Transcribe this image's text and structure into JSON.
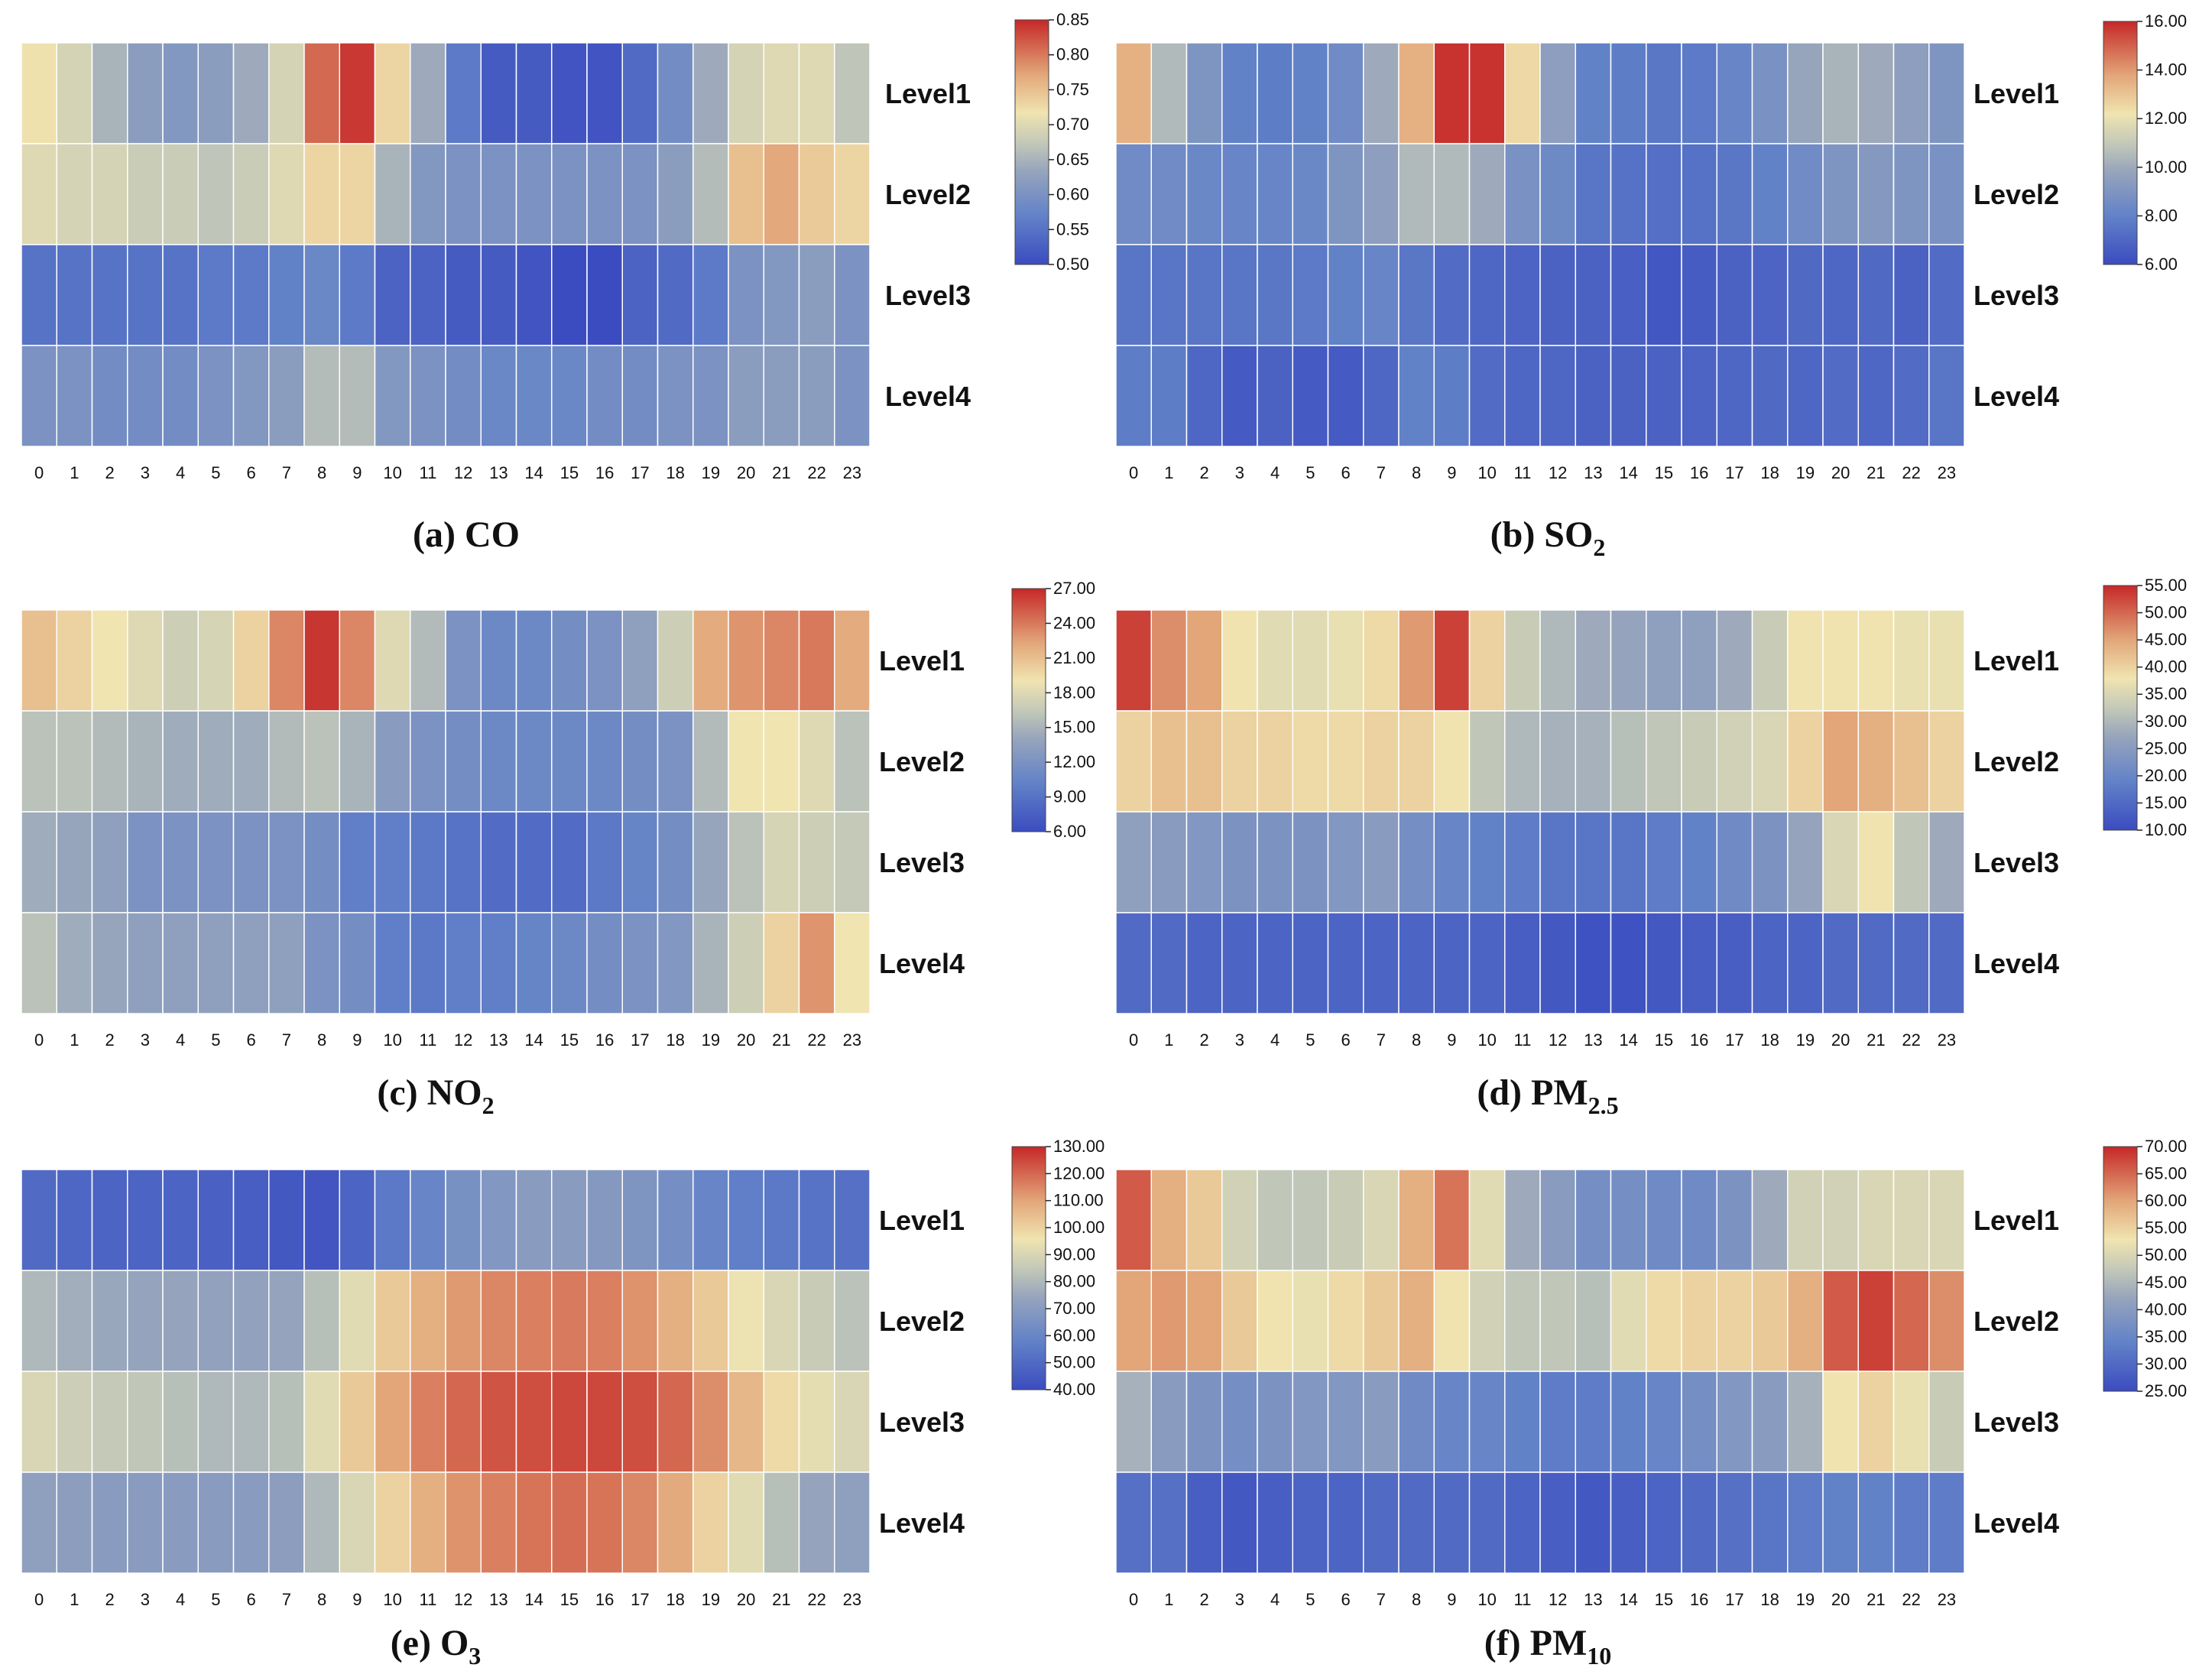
{
  "chart_data": [
    {
      "type": "heatmap",
      "title": "(a) CO",
      "title_main": "(a) CO",
      "title_sub": "",
      "x": [
        "0",
        "1",
        "2",
        "3",
        "4",
        "5",
        "6",
        "7",
        "8",
        "9",
        "10",
        "11",
        "12",
        "13",
        "14",
        "15",
        "16",
        "17",
        "18",
        "19",
        "20",
        "21",
        "22",
        "23"
      ],
      "rows": [
        "Level1",
        "Level2",
        "Level3",
        "Level4"
      ],
      "colorbar_ticks": [
        "0.85",
        "0.80",
        "0.75",
        "0.70",
        "0.65",
        "0.60",
        "0.55",
        "0.50"
      ],
      "vmin": 0.5,
      "vmax": 0.85,
      "values": [
        [
          0.72,
          0.69,
          0.65,
          0.62,
          0.61,
          0.62,
          0.64,
          0.69,
          0.81,
          0.84,
          0.73,
          0.64,
          0.56,
          0.52,
          0.52,
          0.51,
          0.51,
          0.54,
          0.59,
          0.64,
          0.69,
          0.7,
          0.7,
          0.67
        ],
        [
          0.7,
          0.69,
          0.69,
          0.68,
          0.68,
          0.67,
          0.68,
          0.7,
          0.73,
          0.73,
          0.65,
          0.61,
          0.6,
          0.6,
          0.6,
          0.6,
          0.6,
          0.6,
          0.62,
          0.66,
          0.75,
          0.77,
          0.74,
          0.73
        ],
        [
          0.55,
          0.55,
          0.55,
          0.55,
          0.55,
          0.56,
          0.56,
          0.57,
          0.58,
          0.56,
          0.53,
          0.53,
          0.52,
          0.52,
          0.51,
          0.5,
          0.5,
          0.53,
          0.54,
          0.56,
          0.6,
          0.61,
          0.62,
          0.6
        ],
        [
          0.6,
          0.6,
          0.59,
          0.59,
          0.59,
          0.6,
          0.61,
          0.62,
          0.66,
          0.66,
          0.61,
          0.6,
          0.59,
          0.58,
          0.58,
          0.58,
          0.59,
          0.59,
          0.6,
          0.6,
          0.62,
          0.62,
          0.62,
          0.6
        ]
      ]
    },
    {
      "type": "heatmap",
      "title": "(b) SO2",
      "title_main": "(b) SO",
      "title_sub": "2",
      "x": [
        "0",
        "1",
        "2",
        "3",
        "4",
        "5",
        "6",
        "7",
        "8",
        "9",
        "10",
        "11",
        "12",
        "13",
        "14",
        "15",
        "16",
        "17",
        "18",
        "19",
        "20",
        "21",
        "22",
        "23"
      ],
      "rows": [
        "Level1",
        "Level2",
        "Level3",
        "Level4"
      ],
      "colorbar_ticks": [
        "16.00",
        "14.00",
        "12.00",
        "10.00",
        "8.00",
        "6.00"
      ],
      "vmin": 6.0,
      "vmax": 16.0,
      "values": [
        [
          13.5,
          10.5,
          9.0,
          8.0,
          7.8,
          8.0,
          8.5,
          10.0,
          13.5,
          15.8,
          15.8,
          12.5,
          9.5,
          8.0,
          7.8,
          7.6,
          7.7,
          8.2,
          8.8,
          9.8,
          10.3,
          10.0,
          9.5,
          9.0
        ],
        [
          8.5,
          8.5,
          8.3,
          8.2,
          8.2,
          8.3,
          9.0,
          9.5,
          10.5,
          10.5,
          10.0,
          8.8,
          8.4,
          7.5,
          7.4,
          7.3,
          7.4,
          7.6,
          8.0,
          8.5,
          9.0,
          9.2,
          9.0,
          8.8
        ],
        [
          7.5,
          7.5,
          7.5,
          7.5,
          7.6,
          7.7,
          8.0,
          8.2,
          7.6,
          7.2,
          7.0,
          6.9,
          6.8,
          6.8,
          6.7,
          6.4,
          6.6,
          6.8,
          6.9,
          7.1,
          7.0,
          7.1,
          6.8,
          7.2
        ],
        [
          7.8,
          7.8,
          7.0,
          6.5,
          6.8,
          6.5,
          6.5,
          7.0,
          8.0,
          7.8,
          7.2,
          7.0,
          7.0,
          6.8,
          6.8,
          6.8,
          6.9,
          7.0,
          7.1,
          7.0,
          7.2,
          7.0,
          7.2,
          7.5
        ]
      ]
    },
    {
      "type": "heatmap",
      "title": "(c) NO2",
      "title_main": "(c) NO",
      "title_sub": "2",
      "x": [
        "0",
        "1",
        "2",
        "3",
        "4",
        "5",
        "6",
        "7",
        "8",
        "9",
        "10",
        "11",
        "12",
        "13",
        "14",
        "15",
        "16",
        "17",
        "18",
        "19",
        "20",
        "21",
        "22",
        "23"
      ],
      "rows": [
        "Level1",
        "Level2",
        "Level3",
        "Level4"
      ],
      "colorbar_ticks": [
        "27.00",
        "24.00",
        "21.00",
        "18.00",
        "15.00",
        "12.00",
        "9.00",
        "6.00"
      ],
      "vmin": 6.0,
      "vmax": 27.0,
      "values": [
        [
          21.0,
          20.0,
          19.0,
          18.0,
          17.0,
          17.5,
          20.0,
          23.5,
          26.5,
          23.5,
          18.0,
          15.5,
          12.0,
          11.0,
          11.0,
          11.5,
          12.0,
          13.5,
          17.0,
          22.0,
          23.0,
          23.5,
          24.0,
          22.0
        ],
        [
          16.0,
          16.0,
          15.5,
          15.0,
          14.5,
          14.5,
          14.5,
          15.5,
          16.0,
          15.0,
          13.0,
          12.0,
          11.5,
          11.0,
          11.0,
          11.0,
          11.0,
          11.5,
          12.0,
          15.5,
          19.0,
          19.0,
          18.0,
          16.0
        ],
        [
          14.5,
          14.0,
          13.5,
          12.0,
          12.0,
          12.0,
          12.0,
          12.0,
          11.5,
          10.0,
          10.0,
          9.5,
          9.0,
          8.5,
          8.5,
          8.5,
          9.5,
          10.5,
          11.5,
          14.0,
          16.0,
          17.5,
          17.0,
          16.5
        ],
        [
          16.0,
          14.5,
          14.0,
          13.5,
          13.5,
          13.5,
          13.5,
          13.5,
          12.0,
          11.5,
          10.0,
          9.5,
          10.0,
          10.0,
          10.5,
          11.0,
          11.5,
          12.0,
          12.5,
          15.0,
          17.0,
          20.0,
          23.0,
          19.0
        ]
      ]
    },
    {
      "type": "heatmap",
      "title": "(d) PM2.5",
      "title_main": "(d) PM",
      "title_sub": "2.5",
      "x": [
        "0",
        "1",
        "2",
        "3",
        "4",
        "5",
        "6",
        "7",
        "8",
        "9",
        "10",
        "11",
        "12",
        "13",
        "14",
        "15",
        "16",
        "17",
        "18",
        "19",
        "20",
        "21",
        "22",
        "23"
      ],
      "rows": [
        "Level1",
        "Level2",
        "Level3",
        "Level4"
      ],
      "colorbar_ticks": [
        "55.00",
        "50.00",
        "45.00",
        "40.00",
        "35.00",
        "30.00",
        "25.00",
        "20.00",
        "15.00",
        "10.00"
      ],
      "vmin": 10.0,
      "vmax": 55.0,
      "values": [
        [
          53.0,
          47.0,
          45.0,
          38.0,
          36.0,
          36.0,
          37.0,
          39.0,
          46.0,
          53.0,
          40.0,
          33.0,
          30.0,
          28.0,
          27.0,
          26.0,
          26.0,
          28.0,
          33.0,
          38.0,
          38.0,
          38.0,
          37.0,
          37.0
        ],
        [
          40.0,
          42.0,
          42.0,
          40.0,
          40.0,
          39.0,
          39.0,
          40.0,
          40.0,
          38.0,
          32.0,
          30.0,
          29.0,
          29.0,
          31.0,
          32.0,
          33.0,
          34.0,
          35.0,
          40.0,
          45.0,
          44.0,
          42.0,
          40.0
        ],
        [
          26.0,
          25.0,
          24.0,
          23.0,
          23.0,
          23.0,
          24.0,
          25.0,
          22.0,
          20.0,
          19.0,
          18.0,
          17.0,
          17.0,
          17.0,
          18.0,
          19.0,
          21.0,
          23.0,
          27.0,
          35.0,
          38.0,
          32.0,
          28.0
        ],
        [
          15.0,
          15.0,
          14.0,
          14.0,
          14.0,
          14.0,
          14.0,
          14.0,
          14.0,
          14.0,
          14.0,
          13.0,
          12.0,
          11.0,
          11.0,
          12.0,
          13.0,
          13.0,
          14.0,
          14.0,
          15.0,
          15.0,
          15.0,
          15.0
        ]
      ]
    },
    {
      "type": "heatmap",
      "title": "(e) O3",
      "title_main": "(e) O",
      "title_sub": "3",
      "x": [
        "0",
        "1",
        "2",
        "3",
        "4",
        "5",
        "6",
        "7",
        "8",
        "9",
        "10",
        "11",
        "12",
        "13",
        "14",
        "15",
        "16",
        "17",
        "18",
        "19",
        "20",
        "21",
        "22",
        "23"
      ],
      "rows": [
        "Level1",
        "Level2",
        "Level3",
        "Level4"
      ],
      "colorbar_ticks": [
        "130.00",
        "120.00",
        "110.00",
        "100.00",
        "90.00",
        "80.00",
        "70.00",
        "60.00",
        "50.00",
        "40.00"
      ],
      "vmin": 40.0,
      "vmax": 130.0,
      "values": [
        [
          50.0,
          49.0,
          48.0,
          48.0,
          48.0,
          47.0,
          46.0,
          44.0,
          43.0,
          48.0,
          55.0,
          60.0,
          65.0,
          68.0,
          70.0,
          70.0,
          69.0,
          67.0,
          64.0,
          60.0,
          57.0,
          55.0,
          53.0,
          52.0
        ],
        [
          80.0,
          77.0,
          75.0,
          74.0,
          74.0,
          73.0,
          73.0,
          74.0,
          82.0,
          92.0,
          102.0,
          108.0,
          112.0,
          115.0,
          116.0,
          117.0,
          116.0,
          113.0,
          108.0,
          102.0,
          95.0,
          90.0,
          86.0,
          83.0
        ],
        [
          90.0,
          87.0,
          85.0,
          84.0,
          82.0,
          80.0,
          80.0,
          82.0,
          92.0,
          102.0,
          110.0,
          116.0,
          120.0,
          123.0,
          124.0,
          125.0,
          125.0,
          124.0,
          120.0,
          114.0,
          106.0,
          98.0,
          93.0,
          90.0
        ],
        [
          72.0,
          71.0,
          70.0,
          70.0,
          70.0,
          70.0,
          70.0,
          71.0,
          80.0,
          90.0,
          100.0,
          108.0,
          113.0,
          116.0,
          118.0,
          119.0,
          118.0,
          115.0,
          109.0,
          100.0,
          92.0,
          82.0,
          74.0,
          72.0
        ]
      ]
    },
    {
      "type": "heatmap",
      "title": "(f) PM10",
      "title_main": "(f) PM",
      "title_sub": "10",
      "x": [
        "0",
        "1",
        "2",
        "3",
        "4",
        "5",
        "6",
        "7",
        "8",
        "9",
        "10",
        "11",
        "12",
        "13",
        "14",
        "15",
        "16",
        "17",
        "18",
        "19",
        "20",
        "21",
        "22",
        "23"
      ],
      "rows": [
        "Level1",
        "Level2",
        "Level3",
        "Level4"
      ],
      "colorbar_ticks": [
        "70.00",
        "65.00",
        "60.00",
        "55.00",
        "50.00",
        "45.00",
        "40.00",
        "35.00",
        "30.00",
        "25.00"
      ],
      "vmin": 25.0,
      "vmax": 70.0,
      "values": [
        [
          66.0,
          59.0,
          56.0,
          49.0,
          47.0,
          47.0,
          48.0,
          50.0,
          59.0,
          64.0,
          51.0,
          43.0,
          40.0,
          37.0,
          37.0,
          36.0,
          36.0,
          38.0,
          43.0,
          49.0,
          49.0,
          50.0,
          50.0,
          50.0
        ],
        [
          60.0,
          61.0,
          60.0,
          56.0,
          53.0,
          52.0,
          54.0,
          56.0,
          59.0,
          53.0,
          49.0,
          47.0,
          47.0,
          46.0,
          51.0,
          54.0,
          55.0,
          55.0,
          56.0,
          59.0,
          66.0,
          68.0,
          65.0,
          62.0
        ],
        [
          44.0,
          40.0,
          38.0,
          37.0,
          38.0,
          39.0,
          39.0,
          40.0,
          36.0,
          35.0,
          35.0,
          34.0,
          33.0,
          33.0,
          34.0,
          35.0,
          37.0,
          39.0,
          40.0,
          44.0,
          53.0,
          55.0,
          52.0,
          48.0
        ],
        [
          31.0,
          31.0,
          28.0,
          27.0,
          28.0,
          29.0,
          29.0,
          30.0,
          30.0,
          30.0,
          30.0,
          29.0,
          28.0,
          27.0,
          28.0,
          29.0,
          30.0,
          31.0,
          32.0,
          33.0,
          34.0,
          34.0,
          33.0,
          33.0
        ]
      ]
    }
  ]
}
